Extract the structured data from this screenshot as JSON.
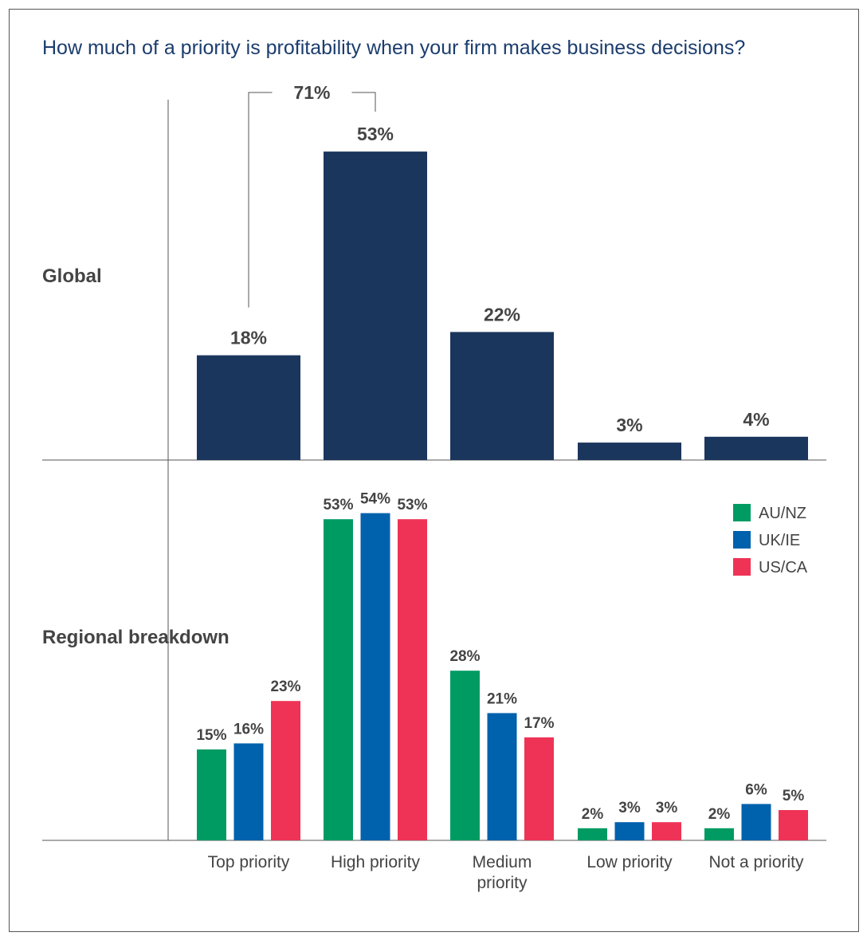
{
  "chart_data": {
    "type": "bar",
    "title": "How much of a priority is profitability when your firm makes business decisions?",
    "categories": [
      "Top priority",
      "High priority",
      "Medium priority",
      "Low priority",
      "Not a priority"
    ],
    "value_suffix": "%",
    "ylim": [
      0,
      60
    ],
    "global": {
      "label": "Global",
      "color": "#1b365d",
      "values": [
        18,
        53,
        22,
        3,
        4
      ],
      "combined_annotation": {
        "label": "71%",
        "categories": [
          "Top priority",
          "High priority"
        ]
      }
    },
    "regional": {
      "label": "Regional breakdown",
      "series": [
        {
          "name": "AU/NZ",
          "color": "#009b63",
          "values": [
            15,
            53,
            28,
            2,
            2
          ]
        },
        {
          "name": "UK/IE",
          "color": "#0061ad",
          "values": [
            16,
            54,
            21,
            3,
            6
          ]
        },
        {
          "name": "US/CA",
          "color": "#ee3356",
          "values": [
            23,
            53,
            17,
            3,
            5
          ]
        }
      ],
      "legend_position": "top-right"
    }
  }
}
